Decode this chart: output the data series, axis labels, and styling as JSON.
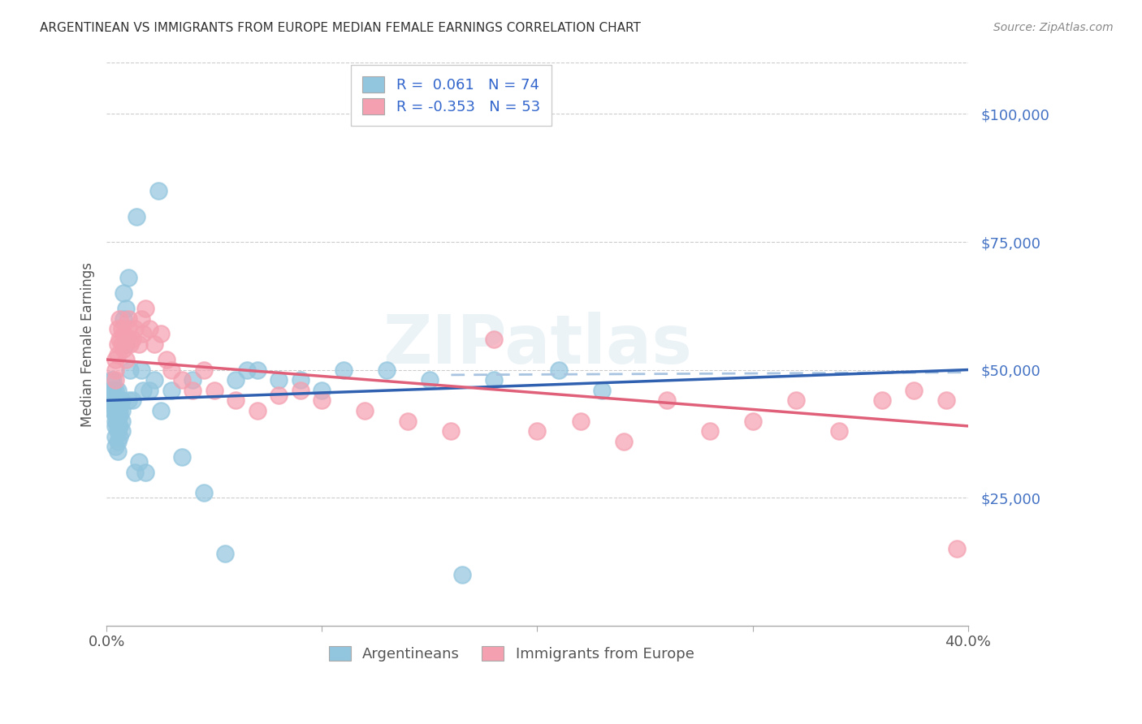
{
  "title": "ARGENTINEAN VS IMMIGRANTS FROM EUROPE MEDIAN FEMALE EARNINGS CORRELATION CHART",
  "source": "Source: ZipAtlas.com",
  "ylabel": "Median Female Earnings",
  "yticks": [
    25000,
    50000,
    75000,
    100000
  ],
  "ytick_labels": [
    "$25,000",
    "$50,000",
    "$75,000",
    "$100,000"
  ],
  "xlim": [
    0.0,
    0.4
  ],
  "ylim": [
    0,
    110000
  ],
  "R_arg": 0.061,
  "N_arg": 74,
  "R_imm": -0.353,
  "N_imm": 53,
  "color_arg": "#92C5DE",
  "color_imm": "#F4A0B0",
  "line_arg": "#3060B0",
  "line_imm": "#E0607A",
  "line_imm_ext": "#A8C4E0",
  "legend_label_arg": "Argentineans",
  "legend_label_imm": "Immigrants from Europe",
  "watermark": "ZIPatlas",
  "arg_line_x0": 0.0,
  "arg_line_y0": 44000,
  "arg_line_x1": 0.4,
  "arg_line_y1": 50000,
  "imm_line_x0": 0.0,
  "imm_line_y0": 52000,
  "imm_line_x1": 0.4,
  "imm_line_y1": 39000,
  "imm_line_ext_x0": 0.16,
  "imm_line_ext_y0": 49000,
  "imm_line_ext_x1": 0.4,
  "imm_line_ext_y1": 49500,
  "argentinean_x": [
    0.002,
    0.002,
    0.002,
    0.003,
    0.003,
    0.003,
    0.003,
    0.003,
    0.003,
    0.004,
    0.004,
    0.004,
    0.004,
    0.004,
    0.004,
    0.004,
    0.004,
    0.004,
    0.005,
    0.005,
    0.005,
    0.005,
    0.005,
    0.005,
    0.005,
    0.005,
    0.005,
    0.005,
    0.005,
    0.006,
    0.006,
    0.006,
    0.006,
    0.006,
    0.007,
    0.007,
    0.007,
    0.007,
    0.008,
    0.008,
    0.009,
    0.009,
    0.01,
    0.01,
    0.011,
    0.012,
    0.013,
    0.014,
    0.015,
    0.016,
    0.017,
    0.018,
    0.02,
    0.022,
    0.024,
    0.025,
    0.03,
    0.035,
    0.04,
    0.045,
    0.055,
    0.06,
    0.065,
    0.07,
    0.08,
    0.09,
    0.1,
    0.11,
    0.13,
    0.15,
    0.165,
    0.18,
    0.21,
    0.23
  ],
  "argentinean_y": [
    44000,
    46000,
    48000,
    42000,
    44000,
    46000,
    48000,
    43000,
    45000,
    40000,
    42000,
    44000,
    46000,
    43000,
    41000,
    39000,
    37000,
    35000,
    44000,
    46000,
    43000,
    41000,
    39000,
    44000,
    42000,
    40000,
    38000,
    36000,
    34000,
    44000,
    42000,
    41000,
    39000,
    37000,
    44000,
    42000,
    40000,
    38000,
    60000,
    65000,
    62000,
    55000,
    68000,
    44000,
    50000,
    44000,
    30000,
    80000,
    32000,
    50000,
    46000,
    30000,
    46000,
    48000,
    85000,
    42000,
    46000,
    33000,
    48000,
    26000,
    14000,
    48000,
    50000,
    50000,
    48000,
    48000,
    46000,
    50000,
    50000,
    48000,
    10000,
    48000,
    50000,
    46000
  ],
  "immigrant_x": [
    0.004,
    0.004,
    0.004,
    0.005,
    0.005,
    0.005,
    0.006,
    0.006,
    0.007,
    0.007,
    0.008,
    0.008,
    0.009,
    0.009,
    0.01,
    0.01,
    0.011,
    0.012,
    0.013,
    0.015,
    0.016,
    0.017,
    0.018,
    0.02,
    0.022,
    0.025,
    0.028,
    0.03,
    0.035,
    0.04,
    0.045,
    0.05,
    0.06,
    0.07,
    0.08,
    0.09,
    0.1,
    0.12,
    0.14,
    0.16,
    0.18,
    0.2,
    0.22,
    0.24,
    0.26,
    0.28,
    0.3,
    0.32,
    0.34,
    0.36,
    0.375,
    0.39,
    0.395
  ],
  "immigrant_y": [
    50000,
    52000,
    48000,
    55000,
    58000,
    53000,
    56000,
    60000,
    55000,
    58000,
    54000,
    57000,
    52000,
    56000,
    58000,
    60000,
    55000,
    56000,
    58000,
    55000,
    60000,
    57000,
    62000,
    58000,
    55000,
    57000,
    52000,
    50000,
    48000,
    46000,
    50000,
    46000,
    44000,
    42000,
    45000,
    46000,
    44000,
    42000,
    40000,
    38000,
    56000,
    38000,
    40000,
    36000,
    44000,
    38000,
    40000,
    44000,
    38000,
    44000,
    46000,
    44000,
    15000
  ]
}
